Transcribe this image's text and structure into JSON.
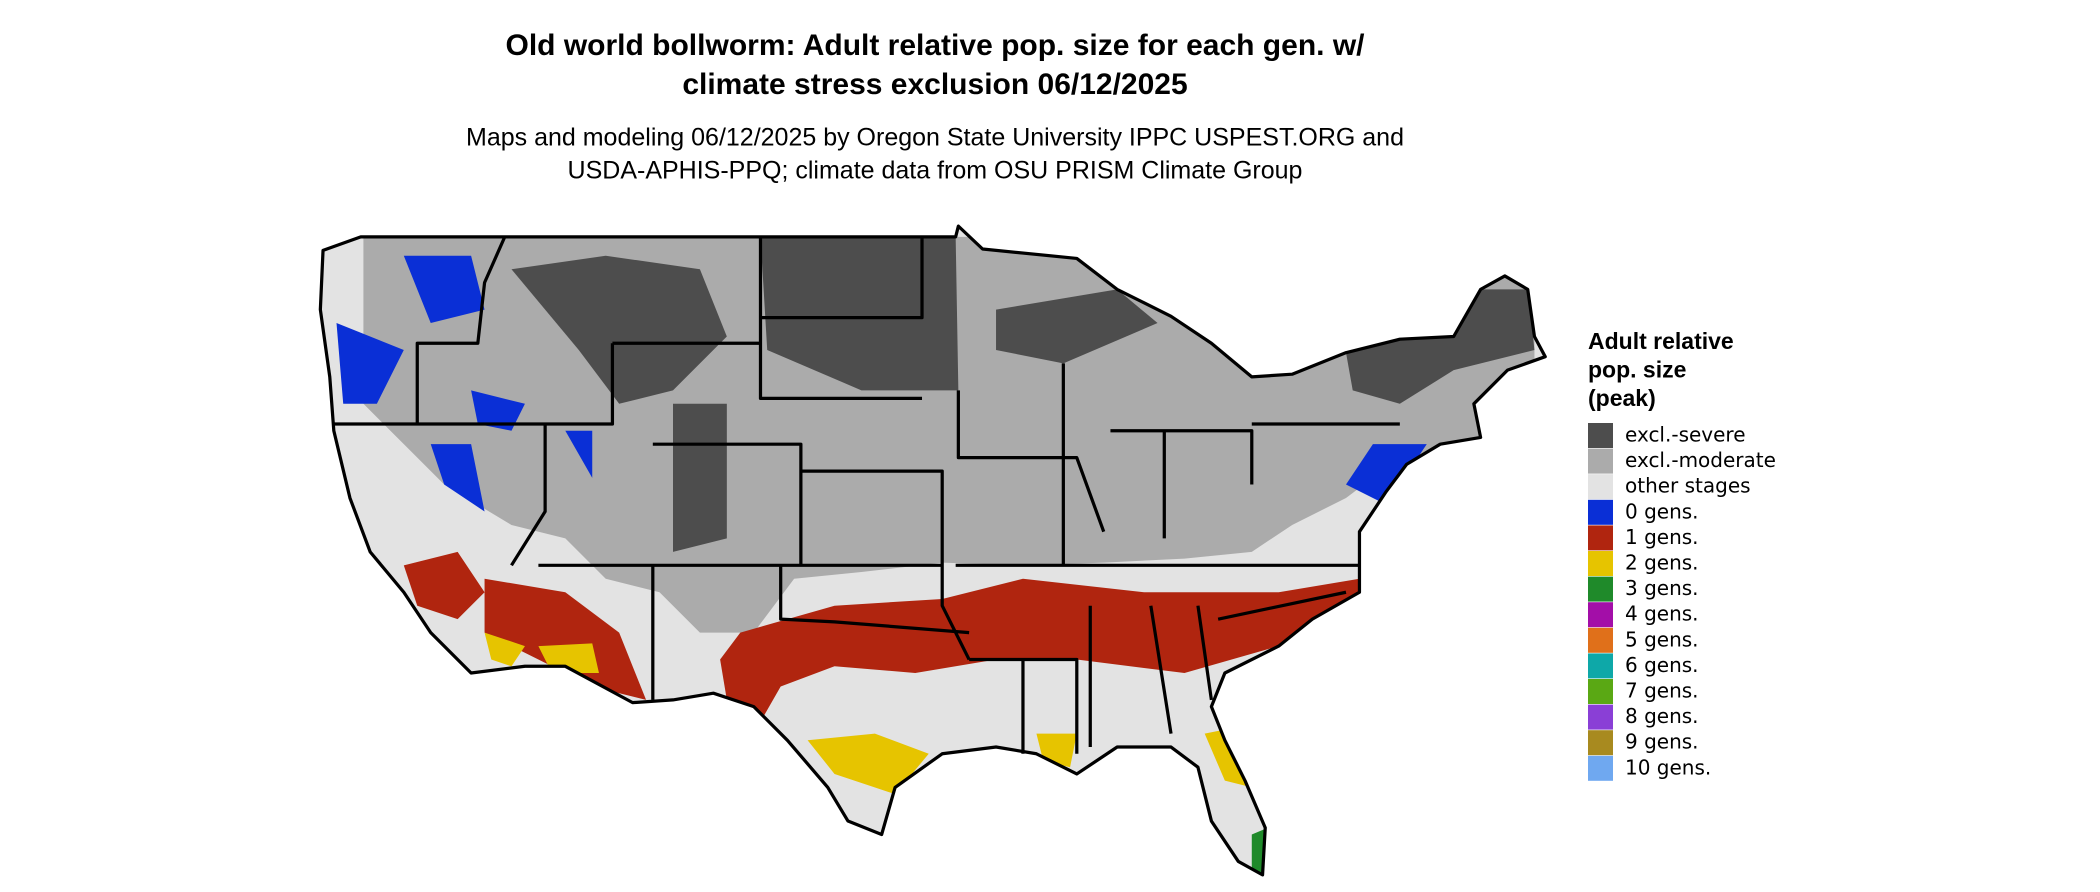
{
  "title": [
    "Old world bollworm: Adult relative pop. size for each gen. w/",
    "climate stress exclusion 06/12/2025"
  ],
  "subtitle": [
    "Maps and modeling 06/12/2025 by Oregon State University IPPC USPEST.ORG and",
    "USDA-APHIS-PPQ; climate data from OSU PRISM Climate Group"
  ],
  "legend": {
    "title": [
      "Adult relative",
      "pop. size",
      "(peak)"
    ],
    "items": [
      {
        "label": "excl.-severe",
        "color": "#4d4d4d"
      },
      {
        "label": "excl.-moderate",
        "color": "#ababab"
      },
      {
        "label": "other stages",
        "color": "#e3e3e3"
      },
      {
        "label": "0 gens.",
        "color": "#0a2fd6"
      },
      {
        "label": "1 gens.",
        "color": "#b0250f"
      },
      {
        "label": "2 gens.",
        "color": "#e6c400"
      },
      {
        "label": "3 gens.",
        "color": "#1f8a2a"
      },
      {
        "label": "4 gens.",
        "color": "#a30ea8"
      },
      {
        "label": "5 gens.",
        "color": "#e0701a"
      },
      {
        "label": "6 gens.",
        "color": "#0ea8a8"
      },
      {
        "label": "7 gens.",
        "color": "#5aa814"
      },
      {
        "label": "8 gens.",
        "color": "#8a3fd6"
      },
      {
        "label": "9 gens.",
        "color": "#a88a1f"
      },
      {
        "label": "10 gens.",
        "color": "#6fa8f0"
      }
    ]
  }
}
